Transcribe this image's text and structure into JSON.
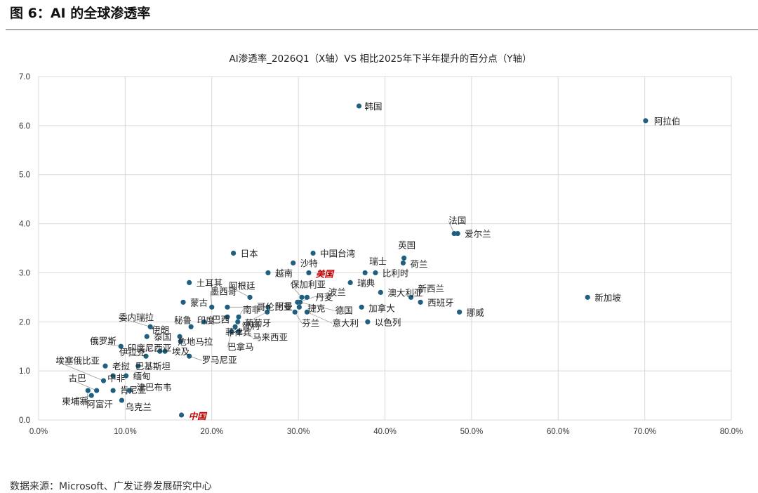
{
  "figure": {
    "title": "图 6：AI 的全球渗透率",
    "source": "数据来源：Microsoft、广发证券发展研究中心"
  },
  "colors": {
    "point": "#1f5f7f",
    "highlight": "#c00000",
    "grid": "#d9d9d9",
    "leader": "#9a9a9a"
  },
  "chart_data": {
    "type": "scatter",
    "title": "AI渗透率_2026Q1（X轴）VS 相比2025年下半年提升的百分点（Y轴）",
    "xlabel": "",
    "ylabel": "",
    "xlim": [
      0,
      80
    ],
    "ylim": [
      0,
      7
    ],
    "x_ticks": [
      "0.0%",
      "10.0%",
      "20.0%",
      "30.0%",
      "40.0%",
      "50.0%",
      "60.0%",
      "70.0%",
      "80.0%"
    ],
    "y_ticks": [
      "0.0",
      "1.0",
      "2.0",
      "3.0",
      "4.0",
      "5.0",
      "6.0",
      "7.0"
    ],
    "grid": true,
    "legend": "none",
    "points": [
      {
        "label": "韩国",
        "x": 37.0,
        "y": 6.4
      },
      {
        "label": "阿拉伯",
        "x": 70.1,
        "y": 6.1
      },
      {
        "label": "法国",
        "x": 48.0,
        "y": 3.8
      },
      {
        "label": "爱尔兰",
        "x": 48.4,
        "y": 3.8
      },
      {
        "label": "英国",
        "x": 42.2,
        "y": 3.3
      },
      {
        "label": "荷兰",
        "x": 42.1,
        "y": 3.2
      },
      {
        "label": "瑞士",
        "x": 37.7,
        "y": 3.0
      },
      {
        "label": "比利时",
        "x": 38.9,
        "y": 3.0
      },
      {
        "label": "日本",
        "x": 22.5,
        "y": 3.4
      },
      {
        "label": "中国台湾",
        "x": 31.7,
        "y": 3.4
      },
      {
        "label": "沙特",
        "x": 29.4,
        "y": 3.2
      },
      {
        "label": "越南",
        "x": 26.5,
        "y": 3.0
      },
      {
        "label": "美国",
        "x": 31.2,
        "y": 3.0,
        "highlight": true
      },
      {
        "label": "瑞典",
        "x": 36.0,
        "y": 2.8
      },
      {
        "label": "土耳其",
        "x": 17.4,
        "y": 2.8
      },
      {
        "label": "阿根廷",
        "x": 24.4,
        "y": 2.5
      },
      {
        "label": "保加利亚",
        "x": 30.4,
        "y": 2.5
      },
      {
        "label": "波兰",
        "x": 29.9,
        "y": 2.4
      },
      {
        "label": "丹麦",
        "x": 31.0,
        "y": 2.5
      },
      {
        "label": "澳大利亚",
        "x": 39.5,
        "y": 2.6
      },
      {
        "label": "新西兰",
        "x": 43.0,
        "y": 2.5
      },
      {
        "label": "西班牙",
        "x": 44.1,
        "y": 2.4
      },
      {
        "label": "新加坡",
        "x": 63.4,
        "y": 2.5
      },
      {
        "label": "挪威",
        "x": 48.6,
        "y": 2.2
      },
      {
        "label": "蒙古",
        "x": 16.7,
        "y": 2.4
      },
      {
        "label": "墨西哥",
        "x": 20.0,
        "y": 2.3
      },
      {
        "label": "哥伦比亚",
        "x": 21.8,
        "y": 2.3
      },
      {
        "label": "南非",
        "x": 23.1,
        "y": 2.1
      },
      {
        "label": "阿曼",
        "x": 26.5,
        "y": 2.3
      },
      {
        "label": "捷克",
        "x": 30.1,
        "y": 2.3
      },
      {
        "label": "德国",
        "x": 30.2,
        "y": 2.4
      },
      {
        "label": "加拿大",
        "x": 37.3,
        "y": 2.3
      },
      {
        "label": "以色列",
        "x": 38.0,
        "y": 2.0
      },
      {
        "label": "葡萄牙",
        "x": 26.4,
        "y": 2.2
      },
      {
        "label": "芬兰",
        "x": 29.6,
        "y": 2.2
      },
      {
        "label": "意大利",
        "x": 31.0,
        "y": 2.2
      },
      {
        "label": "巴西",
        "x": 21.8,
        "y": 2.1
      },
      {
        "label": "智利",
        "x": 23.0,
        "y": 2.0
      },
      {
        "label": "菲律宾",
        "x": 22.7,
        "y": 1.9
      },
      {
        "label": "马来西亚",
        "x": 23.1,
        "y": 1.8
      },
      {
        "label": "巴拿马",
        "x": 22.3,
        "y": 1.8
      },
      {
        "label": "印度",
        "x": 19.1,
        "y": 2.0
      },
      {
        "label": "秘鲁",
        "x": 17.6,
        "y": 1.9
      },
      {
        "label": "伊朗",
        "x": 16.3,
        "y": 1.7
      },
      {
        "label": "委内瑞拉",
        "x": 12.9,
        "y": 1.9
      },
      {
        "label": "泰国",
        "x": 12.5,
        "y": 1.7
      },
      {
        "label": "危地马拉",
        "x": 16.4,
        "y": 1.6
      },
      {
        "label": "印度尼西亚",
        "x": 14.0,
        "y": 1.4
      },
      {
        "label": "埃及",
        "x": 14.6,
        "y": 1.4
      },
      {
        "label": "罗马尼亚",
        "x": 17.4,
        "y": 1.3
      },
      {
        "label": "俄罗斯",
        "x": 9.5,
        "y": 1.5
      },
      {
        "label": "伊拉克",
        "x": 12.4,
        "y": 1.3
      },
      {
        "label": "巴基斯坦",
        "x": 11.5,
        "y": 1.1
      },
      {
        "label": "老挝",
        "x": 7.7,
        "y": 1.1
      },
      {
        "label": "埃塞俄比亚",
        "x": 7.5,
        "y": 0.8
      },
      {
        "label": "缅甸",
        "x": 10.1,
        "y": 0.9
      },
      {
        "label": "中非",
        "x": 8.6,
        "y": 0.9
      },
      {
        "label": "古巴",
        "x": 6.7,
        "y": 0.6
      },
      {
        "label": "肯尼亚",
        "x": 8.6,
        "y": 0.6
      },
      {
        "label": "津巴布韦",
        "x": 10.5,
        "y": 0.6
      },
      {
        "label": "柬埔寨",
        "x": 6.1,
        "y": 0.5
      },
      {
        "label": "阿富汗",
        "x": 5.7,
        "y": 0.6
      },
      {
        "label": "乌克兰",
        "x": 9.6,
        "y": 0.4
      },
      {
        "label": "中国",
        "x": 16.5,
        "y": 0.1,
        "highlight": true
      }
    ]
  }
}
